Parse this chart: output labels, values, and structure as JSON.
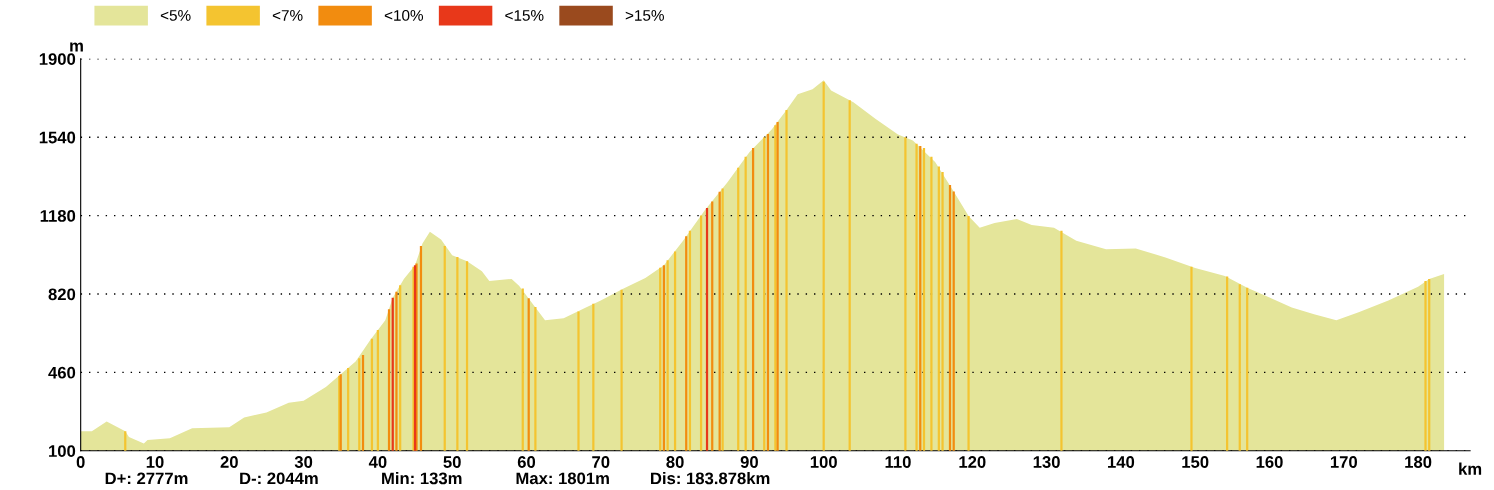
{
  "chart_data": {
    "type": "area",
    "xlabel": "km",
    "ylabel": "m",
    "xlim": [
      0,
      187
    ],
    "xticks": [
      0,
      10,
      20,
      30,
      40,
      50,
      60,
      70,
      80,
      90,
      100,
      110,
      120,
      130,
      140,
      150,
      160,
      170,
      180
    ],
    "ylim": [
      100,
      1900
    ],
    "yticks": [
      100,
      460,
      820,
      1180,
      1540,
      1900
    ],
    "grid": "y",
    "legend": "top left",
    "annotations": [
      "D+: 2777m",
      "D-: 2044m",
      "Min: 133m",
      "Max: 1801m",
      "Dis: 183.878km"
    ],
    "series": [
      {
        "name": "<5%",
        "color": "#e4e59a",
        "x": [
          0,
          1.5,
          3.5,
          6,
          6.5,
          8.5,
          9,
          12,
          15,
          20,
          22,
          25,
          28,
          30,
          33,
          35,
          37,
          39,
          41,
          42,
          43.5,
          45,
          46,
          47,
          48.5,
          50,
          52,
          54,
          55,
          58,
          59,
          61,
          62.5,
          65,
          68,
          70,
          73,
          76,
          78.5,
          81,
          84,
          87,
          90,
          93,
          95,
          96.5,
          98.5,
          100,
          101,
          104,
          107,
          110,
          112,
          115,
          117.5,
          119.5,
          121,
          123,
          126,
          128,
          131,
          134,
          138,
          142,
          146,
          150,
          154,
          157,
          160,
          163,
          166,
          169,
          172,
          176,
          180,
          181.5,
          183.5
        ],
        "values": [
          190,
          190,
          235,
          190,
          163,
          133,
          150,
          158,
          204,
          208,
          253,
          276,
          321,
          330,
          393,
          452,
          510,
          610,
          700,
          803,
          889,
          952,
          1052,
          1106,
          1070,
          998,
          970,
          925,
          880,
          889,
          858,
          767,
          700,
          709,
          758,
          790,
          844,
          894,
          952,
          1061,
          1205,
          1331,
          1471,
          1575,
          1665,
          1737,
          1760,
          1801,
          1755,
          1701,
          1624,
          1552,
          1525,
          1426,
          1291,
          1178,
          1124,
          1146,
          1164,
          1137,
          1124,
          1065,
          1025,
          1029,
          988,
          939,
          903,
          849,
          804,
          758,
          727,
          700,
          736,
          790,
          853,
          889,
          912
        ]
      },
      {
        "name": "<7%",
        "type": "bar",
        "color": "#f4c430",
        "x": [
          6,
          34.8,
          36,
          37.5,
          39.2,
          40,
          43,
          44.8,
          49,
          50.7,
          52,
          59.5,
          61.2,
          67,
          69,
          72.8,
          78,
          79,
          80,
          82,
          83.5,
          86.4,
          88.5,
          89.5,
          92,
          93.5,
          95,
          100,
          103.5,
          111,
          112.5,
          113.5,
          114.5,
          115.5,
          116,
          119.5,
          132,
          149.5,
          154.3,
          156,
          157,
          181,
          181.5
        ],
        "values": [
          190,
          445,
          480,
          525,
          615,
          655,
          860,
          945,
          1040,
          990,
          970,
          845,
          760,
          740,
          775,
          840,
          940,
          975,
          1015,
          1110,
          1180,
          1305,
          1400,
          1450,
          1540,
          1595,
          1665,
          1795,
          1710,
          1540,
          1510,
          1490,
          1450,
          1405,
          1380,
          1178,
          1110,
          945,
          900,
          865,
          849,
          880,
          889
        ]
      },
      {
        "name": "<10%",
        "type": "bar",
        "color": "#f28c0f",
        "x": [
          35,
          38,
          41.5,
          42.5,
          45.2,
          45.8,
          60.3,
          78.5,
          81.5,
          85,
          86,
          90.5,
          92.5,
          93.8,
          113,
          117,
          117.5
        ],
        "values": [
          452,
          540,
          750,
          830,
          960,
          1040,
          800,
          952,
          1085,
          1245,
          1290,
          1490,
          1555,
          1610,
          1500,
          1320,
          1291
        ]
      },
      {
        "name": "<15%",
        "type": "bar",
        "color": "#e8381a",
        "x": [
          42,
          45,
          84.3
        ],
        "values": [
          803,
          952,
          1215
        ]
      },
      {
        "name": ">15%",
        "type": "bar",
        "color": "#9a4a1e"
      }
    ]
  }
}
